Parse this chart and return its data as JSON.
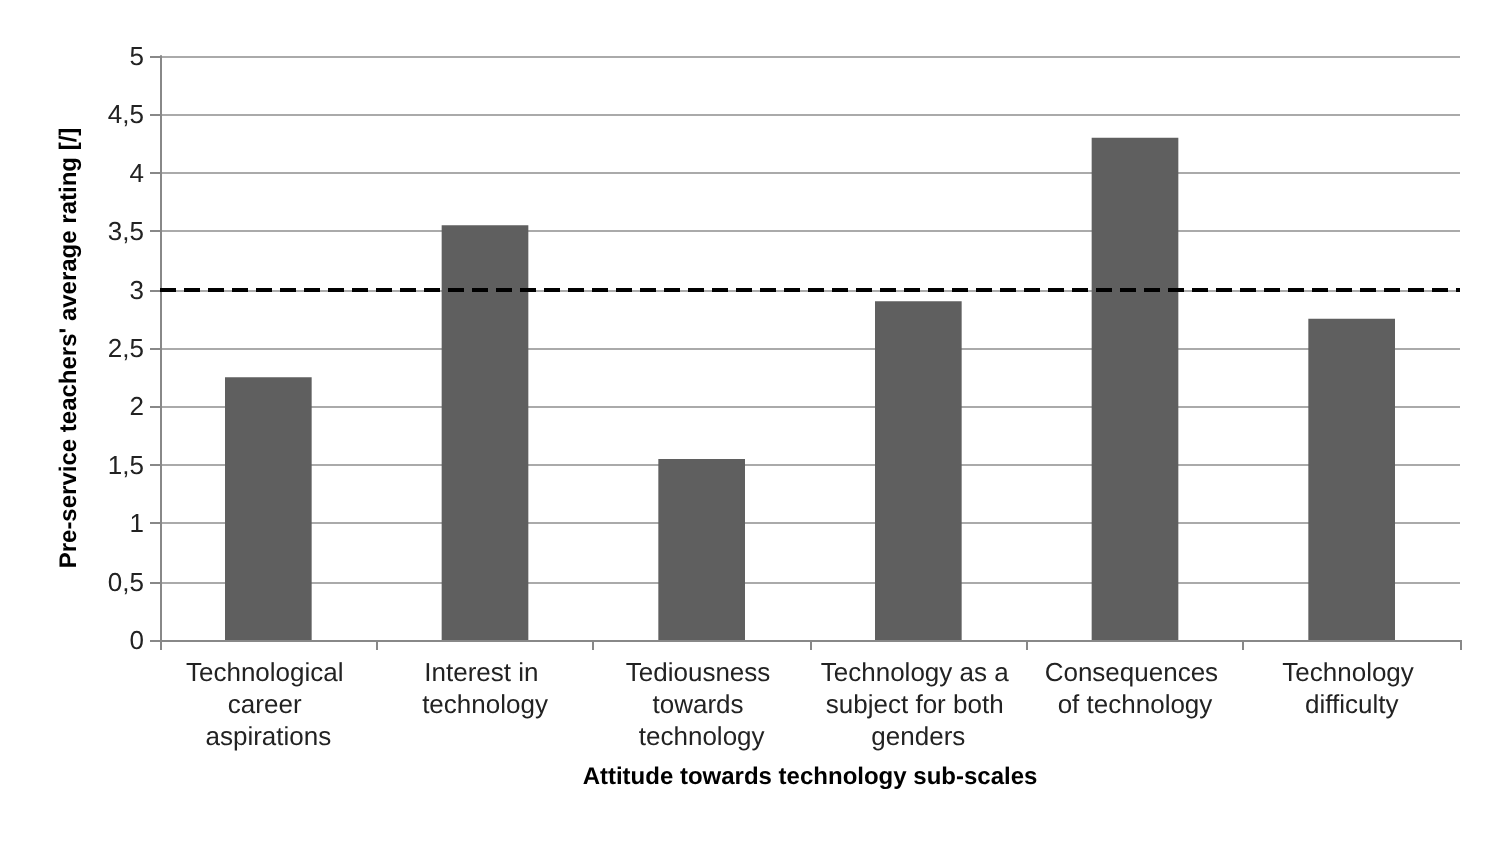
{
  "chart_data": {
    "type": "bar",
    "xlabel": "Attitude towards technology sub-scales",
    "ylabel": "Pre-service teachers' average rating [/]",
    "categories": [
      "Technological career aspirations",
      "Interest in technology",
      "Tediousness towards technology",
      "Technology as a subject for both genders",
      "Consequences of technology",
      "Technology difficulty"
    ],
    "values": [
      2.25,
      3.55,
      1.55,
      2.9,
      4.3,
      2.75
    ],
    "color": "#5f5f5f",
    "ylim": [
      0,
      5
    ],
    "yticks": [
      0,
      {
        "value": 0.5,
        "label": "0,5"
      },
      1,
      {
        "value": 1.5,
        "label": "1,5"
      },
      2,
      {
        "value": 2.5,
        "label": "2,5"
      },
      3,
      {
        "value": 3.5,
        "label": "3,5"
      },
      4,
      {
        "value": 4.5,
        "label": "4,5"
      },
      5
    ],
    "grid": "y",
    "ref_lines": [
      {
        "axis": "y",
        "value": 3,
        "color": "#000000",
        "line_style": "dashed"
      }
    ]
  }
}
